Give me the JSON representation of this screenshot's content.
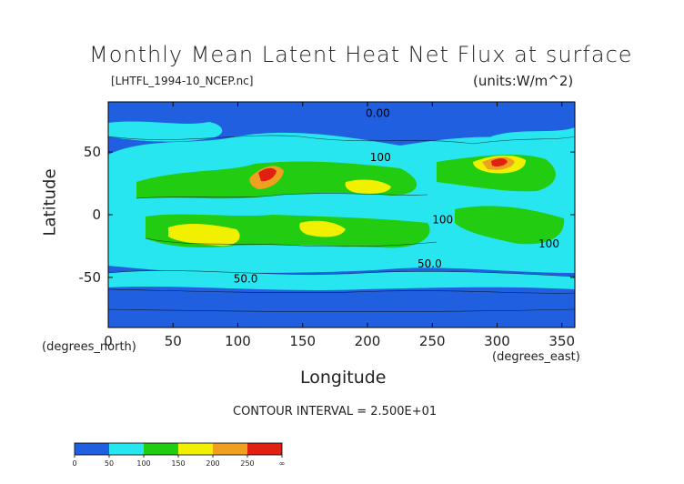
{
  "title": "Monthly Mean Latent Heat Net Flux at surface",
  "filename": "[LHTFL_1994-10_NCEP.nc]",
  "units": "(units:W/m^2)",
  "ylabel": "Latitude",
  "ylabel_sub": "(degrees_north)",
  "xlabel": "Longitude",
  "xlabel_sub": "(degrees_east)",
  "contour_interval": "CONTOUR INTERVAL = 2.500E+01",
  "colors": {
    "level_0_50": "#1f5fe0",
    "level_50_100": "#28e6f0",
    "level_100_150": "#22cc10",
    "level_150_200": "#f0f000",
    "level_200_250": "#f0a020",
    "level_250_inf": "#e02010",
    "land_gray": "#8a8a8a"
  },
  "chart_data": {
    "type": "heatmap",
    "title": "Monthly Mean Latent Heat Net Flux at surface",
    "xlabel": "Longitude",
    "ylabel": "Latitude",
    "xlim": [
      0,
      360
    ],
    "ylim": [
      -90,
      90
    ],
    "xticks": [
      0,
      50,
      100,
      150,
      200,
      250,
      300,
      350
    ],
    "yticks": [
      50,
      0,
      -50
    ],
    "contour_labels": [
      {
        "text": "0.00",
        "lon": 208,
        "lat": 78
      },
      {
        "text": "100",
        "lon": 210,
        "lat": 43
      },
      {
        "text": "100",
        "lon": 258,
        "lat": -7
      },
      {
        "text": "100",
        "lon": 340,
        "lat": -26
      },
      {
        "text": "50.0",
        "lon": 248,
        "lat": -42
      },
      {
        "text": "50.0",
        "lon": 106,
        "lat": -54
      }
    ],
    "colorbar": {
      "labels": [
        "0",
        "50",
        "100",
        "150",
        "200",
        "250",
        "∞"
      ],
      "bins": [
        {
          "range": [
            0,
            50
          ],
          "color": "#1f5fe0"
        },
        {
          "range": [
            50,
            100
          ],
          "color": "#28e6f0"
        },
        {
          "range": [
            100,
            150
          ],
          "color": "#22cc10"
        },
        {
          "range": [
            150,
            200
          ],
          "color": "#f0f000"
        },
        {
          "range": [
            200,
            250
          ],
          "color": "#f0a020"
        },
        {
          "range": [
            250,
            "inf"
          ],
          "color": "#e02010"
        }
      ]
    }
  }
}
